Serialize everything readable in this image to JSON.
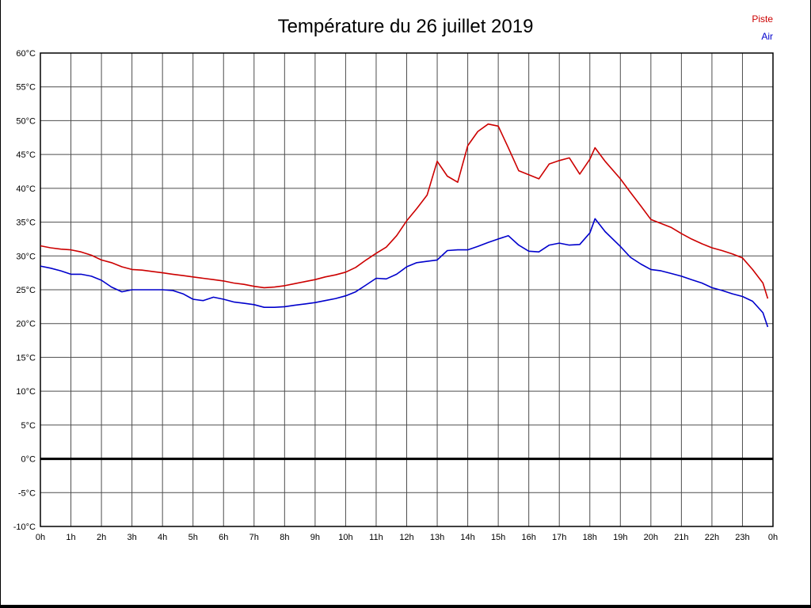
{
  "chart_data": {
    "type": "line",
    "title": "Température du 26 juillet 2019",
    "xlim": [
      0,
      24
    ],
    "ylim": [
      -10,
      60
    ],
    "y_step": 5,
    "grid": true,
    "zero_line_at": 0,
    "legend_position": "top-right",
    "x_tick_labels": [
      "0h",
      "1h",
      "2h",
      "3h",
      "4h",
      "5h",
      "6h",
      "7h",
      "8h",
      "9h",
      "10h",
      "11h",
      "12h",
      "13h",
      "14h",
      "15h",
      "16h",
      "17h",
      "18h",
      "19h",
      "20h",
      "21h",
      "22h",
      "23h",
      "0h"
    ],
    "y_tick_labels": [
      "60°C",
      "55°C",
      "50°C",
      "45°C",
      "40°C",
      "35°C",
      "30°C",
      "25°C",
      "20°C",
      "15°C",
      "10°C",
      "5°C",
      "0°C",
      "-5°C",
      "-10°C"
    ],
    "legend": [
      {
        "name": "Piste",
        "color": "#cc0000"
      },
      {
        "name": "Air",
        "color": "#0000cc"
      }
    ],
    "colors": {
      "grid": "#4d4d4d",
      "frame": "#000000",
      "zero_line": "#000000"
    },
    "series": [
      {
        "name": "Piste",
        "color": "#cc0000",
        "x": [
          0,
          0.33,
          0.67,
          1,
          1.33,
          1.67,
          2,
          2.33,
          2.67,
          3,
          3.33,
          3.67,
          4,
          4.33,
          4.67,
          5,
          5.33,
          5.67,
          6,
          6.33,
          6.67,
          7,
          7.33,
          7.67,
          8,
          8.33,
          8.67,
          9,
          9.33,
          9.67,
          10,
          10.33,
          10.67,
          11,
          11.33,
          11.67,
          12,
          12.33,
          12.67,
          13,
          13.33,
          13.67,
          14,
          14.33,
          14.67,
          15,
          15.33,
          15.67,
          16,
          16.33,
          16.67,
          17,
          17.33,
          17.67,
          18,
          18.17,
          18.5,
          19,
          19.33,
          19.67,
          20,
          20.33,
          20.67,
          21,
          21.33,
          21.67,
          22,
          22.33,
          22.67,
          23,
          23.33,
          23.67,
          23.83
        ],
        "y": [
          31.5,
          31.2,
          31.0,
          30.9,
          30.6,
          30.1,
          29.4,
          29.0,
          28.4,
          28.0,
          27.9,
          27.7,
          27.5,
          27.3,
          27.1,
          26.9,
          26.7,
          26.5,
          26.3,
          26.0,
          25.8,
          25.5,
          25.3,
          25.4,
          25.6,
          25.9,
          26.2,
          26.5,
          26.9,
          27.2,
          27.6,
          28.3,
          29.4,
          30.4,
          31.3,
          33.0,
          35.2,
          37.0,
          39.0,
          44.0,
          41.8,
          40.9,
          46.3,
          48.4,
          49.5,
          49.2,
          46.0,
          42.6,
          42.0,
          41.4,
          43.6,
          44.1,
          44.5,
          42.1,
          44.3,
          46.0,
          44.0,
          41.4,
          39.4,
          37.4,
          35.4,
          34.8,
          34.2,
          33.3,
          32.5,
          31.8,
          31.2,
          30.8,
          30.3,
          29.7,
          28.0,
          26.0,
          23.7
        ]
      },
      {
        "name": "Air",
        "color": "#0000cc",
        "x": [
          0,
          0.33,
          0.67,
          1,
          1.33,
          1.67,
          2,
          2.33,
          2.67,
          3,
          3.33,
          3.67,
          4,
          4.33,
          4.67,
          5,
          5.33,
          5.67,
          6,
          6.33,
          6.67,
          7,
          7.33,
          7.67,
          8,
          8.33,
          8.67,
          9,
          9.33,
          9.67,
          10,
          10.33,
          10.67,
          11,
          11.33,
          11.67,
          12,
          12.33,
          12.67,
          13,
          13.33,
          13.67,
          14,
          14.33,
          14.67,
          15,
          15.33,
          15.67,
          16,
          16.33,
          16.67,
          17,
          17.33,
          17.67,
          18,
          18.17,
          18.5,
          19,
          19.33,
          19.67,
          20,
          20.33,
          20.67,
          21,
          21.33,
          21.67,
          22,
          22.33,
          22.67,
          23,
          23.33,
          23.67,
          23.83
        ],
        "y": [
          28.5,
          28.2,
          27.8,
          27.3,
          27.3,
          27.0,
          26.4,
          25.4,
          24.7,
          25.0,
          25.0,
          25.0,
          25.0,
          24.9,
          24.4,
          23.6,
          23.4,
          23.9,
          23.6,
          23.2,
          23.0,
          22.8,
          22.4,
          22.4,
          22.5,
          22.7,
          22.9,
          23.1,
          23.4,
          23.7,
          24.1,
          24.7,
          25.7,
          26.7,
          26.6,
          27.3,
          28.4,
          29.0,
          29.2,
          29.4,
          30.8,
          30.9,
          30.9,
          31.4,
          32.0,
          32.5,
          33.0,
          31.6,
          30.7,
          30.6,
          31.6,
          31.9,
          31.6,
          31.7,
          33.4,
          35.5,
          33.6,
          31.4,
          29.8,
          28.8,
          28.0,
          27.8,
          27.4,
          27.0,
          26.5,
          26.0,
          25.3,
          24.9,
          24.4,
          24.0,
          23.3,
          21.6,
          19.5
        ]
      }
    ]
  }
}
